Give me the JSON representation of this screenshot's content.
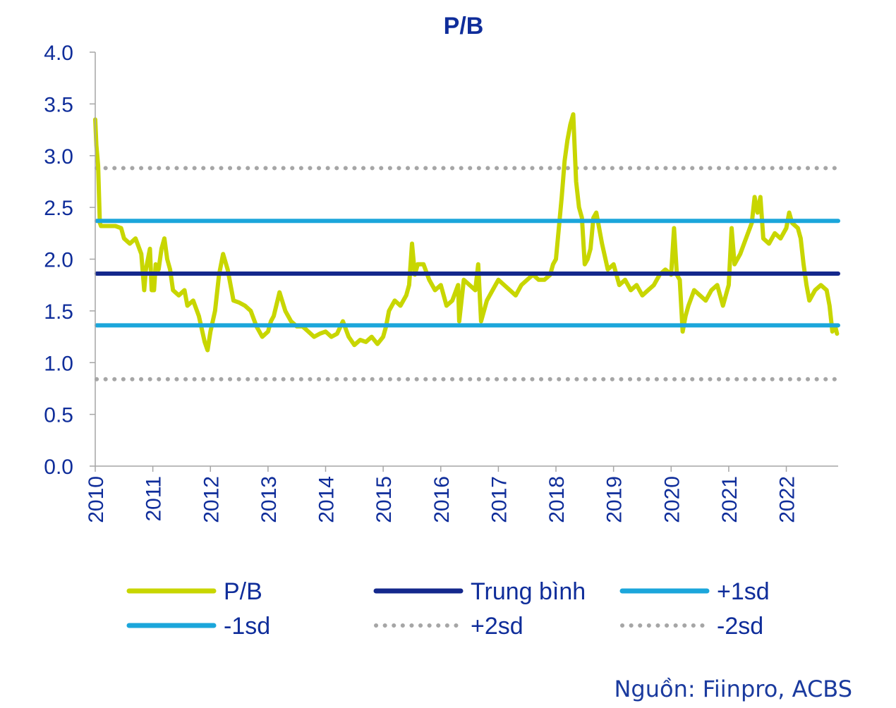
{
  "source": "Nguồn: Fiinpro, ACBS",
  "chart_data": {
    "type": "line",
    "title": "P/B",
    "xlabel": "",
    "ylabel": "",
    "ylim": [
      0,
      4
    ],
    "xlim": [
      2010,
      2022.9
    ],
    "yticks": [
      "0.0",
      "0.5",
      "1.0",
      "1.5",
      "2.0",
      "2.5",
      "3.0",
      "3.5",
      "4.0"
    ],
    "xticks": [
      "2010",
      "2011",
      "2012",
      "2013",
      "2014",
      "2015",
      "2016",
      "2017",
      "2018",
      "2019",
      "2020",
      "2021",
      "2022"
    ],
    "colors": {
      "pb": "#c8d600",
      "mean": "#14288c",
      "sd1": "#1ba6db",
      "sd2": "#a6a6a6",
      "text": "#0f2d9a"
    },
    "series": [
      {
        "name": "P/B",
        "style": "line",
        "x": [
          2010.0,
          2010.02,
          2010.05,
          2010.08,
          2010.1,
          2010.2,
          2010.35,
          2010.45,
          2010.5,
          2010.6,
          2010.7,
          2010.8,
          2010.85,
          2010.88,
          2010.95,
          2010.98,
          2011.02,
          2011.05,
          2011.1,
          2011.15,
          2011.2,
          2011.25,
          2011.3,
          2011.35,
          2011.45,
          2011.55,
          2011.6,
          2011.7,
          2011.8,
          2011.9,
          2011.95,
          2012.0,
          2012.08,
          2012.15,
          2012.22,
          2012.3,
          2012.4,
          2012.5,
          2012.6,
          2012.7,
          2012.8,
          2012.9,
          2013.0,
          2013.05,
          2013.1,
          2013.2,
          2013.3,
          2013.4,
          2013.5,
          2013.6,
          2013.7,
          2013.8,
          2013.9,
          2014.0,
          2014.1,
          2014.2,
          2014.3,
          2014.4,
          2014.5,
          2014.6,
          2014.7,
          2014.8,
          2014.9,
          2015.0,
          2015.05,
          2015.1,
          2015.2,
          2015.3,
          2015.4,
          2015.45,
          2015.5,
          2015.55,
          2015.6,
          2015.7,
          2015.8,
          2015.9,
          2016.0,
          2016.1,
          2016.2,
          2016.3,
          2016.32,
          2016.4,
          2016.5,
          2016.6,
          2016.65,
          2016.7,
          2016.8,
          2016.9,
          2017.0,
          2017.1,
          2017.2,
          2017.3,
          2017.4,
          2017.5,
          2017.6,
          2017.7,
          2017.8,
          2017.9,
          2017.95,
          2018.0,
          2018.05,
          2018.1,
          2018.15,
          2018.2,
          2018.25,
          2018.3,
          2018.35,
          2018.4,
          2018.45,
          2018.5,
          2018.55,
          2018.6,
          2018.65,
          2018.7,
          2018.8,
          2018.9,
          2019.0,
          2019.1,
          2019.2,
          2019.3,
          2019.4,
          2019.5,
          2019.6,
          2019.7,
          2019.8,
          2019.9,
          2020.0,
          2020.05,
          2020.1,
          2020.15,
          2020.2,
          2020.25,
          2020.3,
          2020.4,
          2020.5,
          2020.6,
          2020.7,
          2020.8,
          2020.9,
          2021.0,
          2021.05,
          2021.1,
          2021.2,
          2021.3,
          2021.4,
          2021.45,
          2021.5,
          2021.55,
          2021.6,
          2021.7,
          2021.8,
          2021.9,
          2022.0,
          2022.05,
          2022.1,
          2022.2,
          2022.25,
          2022.3,
          2022.35,
          2022.4,
          2022.5,
          2022.6,
          2022.7,
          2022.75,
          2022.8,
          2022.85,
          2022.88
        ],
        "values": [
          3.35,
          3.1,
          2.9,
          2.35,
          2.32,
          2.32,
          2.32,
          2.3,
          2.2,
          2.15,
          2.2,
          2.05,
          1.7,
          1.9,
          2.1,
          1.7,
          1.7,
          1.95,
          1.9,
          2.1,
          2.2,
          2.0,
          1.9,
          1.7,
          1.65,
          1.7,
          1.55,
          1.6,
          1.45,
          1.2,
          1.12,
          1.3,
          1.5,
          1.85,
          2.05,
          1.9,
          1.6,
          1.58,
          1.55,
          1.5,
          1.35,
          1.25,
          1.3,
          1.4,
          1.45,
          1.68,
          1.5,
          1.4,
          1.35,
          1.35,
          1.3,
          1.25,
          1.28,
          1.3,
          1.25,
          1.28,
          1.4,
          1.25,
          1.17,
          1.22,
          1.2,
          1.25,
          1.18,
          1.25,
          1.35,
          1.5,
          1.6,
          1.55,
          1.65,
          1.75,
          2.15,
          1.85,
          1.95,
          1.95,
          1.8,
          1.7,
          1.75,
          1.55,
          1.6,
          1.75,
          1.4,
          1.8,
          1.75,
          1.7,
          1.95,
          1.4,
          1.6,
          1.7,
          1.8,
          1.75,
          1.7,
          1.65,
          1.75,
          1.8,
          1.85,
          1.8,
          1.8,
          1.85,
          1.95,
          2.0,
          2.3,
          2.6,
          2.95,
          3.15,
          3.3,
          3.4,
          2.75,
          2.5,
          2.4,
          1.95,
          2.0,
          2.1,
          2.4,
          2.45,
          2.15,
          1.9,
          1.95,
          1.75,
          1.8,
          1.7,
          1.75,
          1.65,
          1.7,
          1.75,
          1.85,
          1.9,
          1.85,
          2.3,
          1.85,
          1.8,
          1.3,
          1.45,
          1.55,
          1.7,
          1.65,
          1.6,
          1.7,
          1.75,
          1.55,
          1.75,
          2.3,
          1.95,
          2.05,
          2.2,
          2.35,
          2.6,
          2.45,
          2.6,
          2.2,
          2.15,
          2.25,
          2.2,
          2.3,
          2.45,
          2.35,
          2.3,
          2.2,
          1.95,
          1.75,
          1.6,
          1.7,
          1.75,
          1.7,
          1.55,
          1.3,
          1.35,
          1.28
        ]
      },
      {
        "name": "Trung bình",
        "style": "hline",
        "value": 1.86
      },
      {
        "name": "+1sd",
        "style": "hline",
        "value": 2.37
      },
      {
        "name": "-1sd",
        "style": "hline",
        "value": 1.36
      },
      {
        "name": "+2sd",
        "style": "hline-dotted",
        "value": 2.88
      },
      {
        "name": "-2sd",
        "style": "hline-dotted",
        "value": 0.84
      }
    ],
    "legend": {
      "position": "bottom",
      "entries": [
        {
          "label": "P/B",
          "style": "solid",
          "color_key": "pb"
        },
        {
          "label": "Trung bình",
          "style": "solid",
          "color_key": "mean"
        },
        {
          "label": "+1sd",
          "style": "solid",
          "color_key": "sd1"
        },
        {
          "label": "-1sd",
          "style": "solid",
          "color_key": "sd1"
        },
        {
          "label": "+2sd",
          "style": "dotted",
          "color_key": "sd2"
        },
        {
          "label": "-2sd",
          "style": "dotted",
          "color_key": "sd2"
        }
      ]
    }
  }
}
